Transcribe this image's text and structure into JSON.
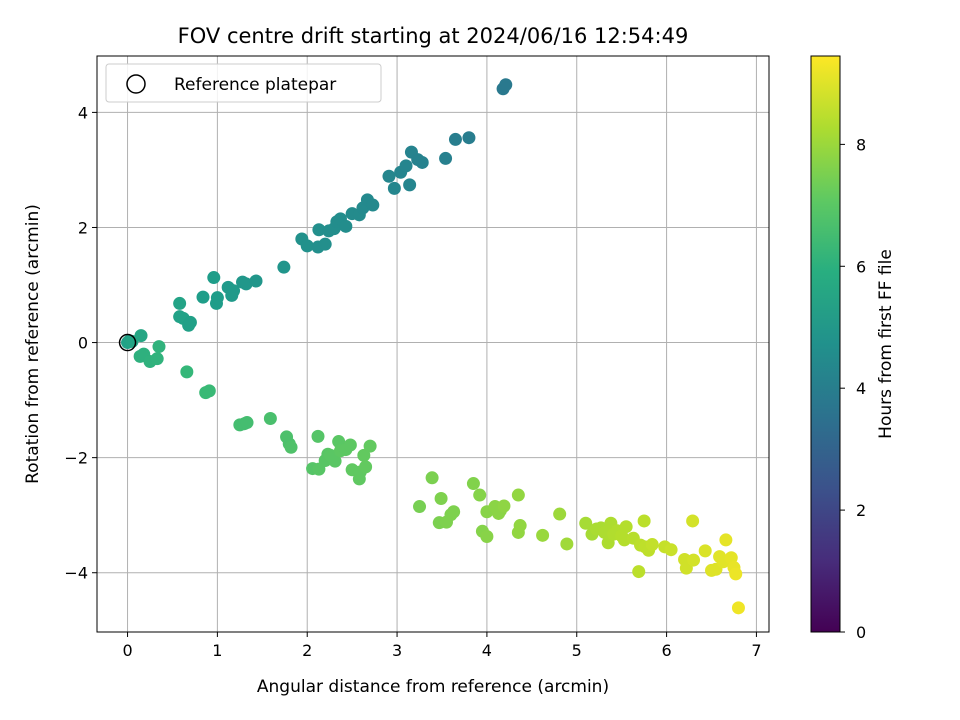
{
  "chart_data": {
    "type": "scatter",
    "title": "FOV centre drift starting at 2024/06/16 12:54:49",
    "xlabel": "Angular distance from reference (arcmin)",
    "ylabel": "Rotation from reference (arcmin)",
    "xlim": [
      -0.34,
      7.14
    ],
    "ylim": [
      -5.03,
      4.98
    ],
    "x_ticks": [
      0,
      1,
      2,
      3,
      4,
      5,
      6,
      7
    ],
    "x_tick_labels": [
      "0",
      "1",
      "2",
      "3",
      "4",
      "5",
      "6",
      "7"
    ],
    "y_ticks": [
      -4,
      -2,
      0,
      2,
      4
    ],
    "y_tick_labels": [
      "−4",
      "−2",
      "0",
      "2",
      "4"
    ],
    "grid": true,
    "legend": {
      "position": "top-left",
      "entries": [
        {
          "label": "Reference platepar",
          "marker": "hollow-circle"
        }
      ]
    },
    "colorbar": {
      "label": "Hours from first FF file",
      "colormap": "viridis",
      "min": 0,
      "max": 9.45,
      "ticks": [
        0,
        2,
        4,
        6,
        8
      ],
      "tick_labels": [
        "0",
        "2",
        "4",
        "6",
        "8"
      ]
    },
    "reference_point": {
      "x": 0,
      "y": 0
    },
    "series": [
      {
        "color_value_label": "Hours from first FF file",
        "points": [
          [
            0.0,
            0.0,
            5.4
          ],
          [
            0.02,
            0.03,
            5.4
          ],
          [
            0.05,
            0.02,
            5.5
          ],
          [
            0.15,
            0.12,
            5.6
          ],
          [
            0.14,
            -0.24,
            6.0
          ],
          [
            0.18,
            -0.2,
            6.0
          ],
          [
            0.25,
            -0.33,
            6.05
          ],
          [
            0.33,
            -0.28,
            6.1
          ],
          [
            0.35,
            -0.07,
            6.1
          ],
          [
            0.58,
            0.68,
            5.45
          ],
          [
            0.58,
            0.45,
            5.4
          ],
          [
            0.62,
            0.42,
            5.4
          ],
          [
            0.68,
            0.3,
            5.35
          ],
          [
            0.7,
            0.35,
            5.35
          ],
          [
            0.84,
            0.79,
            5.25
          ],
          [
            0.96,
            1.13,
            5.2
          ],
          [
            0.99,
            0.68,
            5.2
          ],
          [
            1.0,
            0.78,
            5.2
          ],
          [
            1.12,
            0.96,
            5.1
          ],
          [
            1.16,
            0.82,
            5.1
          ],
          [
            1.18,
            0.9,
            5.1
          ],
          [
            1.28,
            1.05,
            5.0
          ],
          [
            1.32,
            1.02,
            5.0
          ],
          [
            1.43,
            1.07,
            4.95
          ],
          [
            1.74,
            1.31,
            4.9
          ],
          [
            1.94,
            1.8,
            4.75
          ],
          [
            2.0,
            1.68,
            4.75
          ],
          [
            2.12,
            1.66,
            4.7
          ],
          [
            2.13,
            1.96,
            4.7
          ],
          [
            2.2,
            1.71,
            4.7
          ],
          [
            2.24,
            1.94,
            4.65
          ],
          [
            2.3,
            1.98,
            4.65
          ],
          [
            2.33,
            2.1,
            4.6
          ],
          [
            2.37,
            2.15,
            4.6
          ],
          [
            2.43,
            2.02,
            4.6
          ],
          [
            2.5,
            2.24,
            4.55
          ],
          [
            2.58,
            2.22,
            4.55
          ],
          [
            2.62,
            2.34,
            4.5
          ],
          [
            2.67,
            2.48,
            4.45
          ],
          [
            2.73,
            2.39,
            4.45
          ],
          [
            2.91,
            2.89,
            4.35
          ],
          [
            2.97,
            2.68,
            4.35
          ],
          [
            3.04,
            2.96,
            4.3
          ],
          [
            3.1,
            3.07,
            4.3
          ],
          [
            3.14,
            2.74,
            4.3
          ],
          [
            3.16,
            3.31,
            4.25
          ],
          [
            3.23,
            3.18,
            4.2
          ],
          [
            3.28,
            3.13,
            4.2
          ],
          [
            3.54,
            3.2,
            4.1
          ],
          [
            3.65,
            3.53,
            4.05
          ],
          [
            3.8,
            3.56,
            4.0
          ],
          [
            4.18,
            4.41,
            3.85
          ],
          [
            4.21,
            4.48,
            3.85
          ],
          [
            0.66,
            -0.51,
            6.3
          ],
          [
            0.87,
            -0.87,
            6.4
          ],
          [
            0.91,
            -0.84,
            6.4
          ],
          [
            1.25,
            -1.43,
            6.6
          ],
          [
            1.3,
            -1.41,
            6.6
          ],
          [
            1.33,
            -1.39,
            6.6
          ],
          [
            1.59,
            -1.32,
            6.7
          ],
          [
            1.77,
            -1.64,
            6.75
          ],
          [
            1.8,
            -1.76,
            6.75
          ],
          [
            1.82,
            -1.82,
            6.8
          ],
          [
            2.06,
            -2.19,
            6.9
          ],
          [
            2.12,
            -1.63,
            6.9
          ],
          [
            2.13,
            -2.2,
            6.95
          ],
          [
            2.2,
            -2.05,
            6.95
          ],
          [
            2.23,
            -1.94,
            6.95
          ],
          [
            2.26,
            -1.96,
            7.0
          ],
          [
            2.31,
            -2.06,
            7.0
          ],
          [
            2.35,
            -1.72,
            7.0
          ],
          [
            2.37,
            -1.88,
            7.05
          ],
          [
            2.43,
            -1.86,
            7.05
          ],
          [
            2.48,
            -1.78,
            7.05
          ],
          [
            2.5,
            -2.21,
            7.1
          ],
          [
            2.58,
            -2.37,
            7.1
          ],
          [
            2.59,
            -2.25,
            7.1
          ],
          [
            2.63,
            -1.96,
            7.15
          ],
          [
            2.65,
            -2.16,
            7.15
          ],
          [
            2.7,
            -1.8,
            7.15
          ],
          [
            3.25,
            -2.85,
            7.5
          ],
          [
            3.39,
            -2.35,
            7.55
          ],
          [
            3.47,
            -3.13,
            7.55
          ],
          [
            3.49,
            -2.71,
            7.6
          ],
          [
            3.55,
            -3.12,
            7.6
          ],
          [
            3.6,
            -2.99,
            7.6
          ],
          [
            3.63,
            -2.94,
            7.6
          ],
          [
            3.85,
            -2.45,
            7.65
          ],
          [
            3.92,
            -2.65,
            7.7
          ],
          [
            3.95,
            -3.28,
            7.7
          ],
          [
            4.0,
            -2.94,
            7.75
          ],
          [
            4.0,
            -3.37,
            7.75
          ],
          [
            4.09,
            -2.85,
            7.8
          ],
          [
            4.13,
            -2.97,
            7.8
          ],
          [
            4.15,
            -2.92,
            7.8
          ],
          [
            4.19,
            -2.84,
            7.85
          ],
          [
            4.35,
            -2.65,
            7.9
          ],
          [
            4.35,
            -3.3,
            7.9
          ],
          [
            4.37,
            -3.18,
            7.9
          ],
          [
            4.62,
            -3.35,
            8.0
          ],
          [
            4.81,
            -2.98,
            8.05
          ],
          [
            4.89,
            -3.5,
            8.1
          ],
          [
            5.1,
            -3.14,
            8.2
          ],
          [
            5.17,
            -3.33,
            8.2
          ],
          [
            5.22,
            -3.24,
            8.25
          ],
          [
            5.27,
            -3.22,
            8.25
          ],
          [
            5.31,
            -3.3,
            8.3
          ],
          [
            5.35,
            -3.48,
            8.3
          ],
          [
            5.38,
            -3.14,
            8.3
          ],
          [
            5.41,
            -3.33,
            8.35
          ],
          [
            5.45,
            -3.27,
            8.35
          ],
          [
            5.5,
            -3.36,
            8.4
          ],
          [
            5.53,
            -3.43,
            8.4
          ],
          [
            5.55,
            -3.2,
            8.4
          ],
          [
            5.63,
            -3.4,
            8.45
          ],
          [
            5.69,
            -3.98,
            8.5
          ],
          [
            5.71,
            -3.52,
            8.5
          ],
          [
            5.75,
            -3.1,
            8.5
          ],
          [
            5.76,
            -3.55,
            8.55
          ],
          [
            5.8,
            -3.61,
            8.55
          ],
          [
            5.84,
            -3.51,
            8.6
          ],
          [
            5.98,
            -3.55,
            8.65
          ],
          [
            6.05,
            -3.6,
            8.7
          ],
          [
            6.2,
            -3.77,
            8.8
          ],
          [
            6.22,
            -3.92,
            8.8
          ],
          [
            6.29,
            -3.1,
            8.85
          ],
          [
            6.3,
            -3.78,
            8.85
          ],
          [
            6.43,
            -3.62,
            8.95
          ],
          [
            6.5,
            -3.96,
            9.0
          ],
          [
            6.55,
            -3.94,
            9.0
          ],
          [
            6.59,
            -3.72,
            9.05
          ],
          [
            6.63,
            -3.81,
            9.05
          ],
          [
            6.66,
            -3.43,
            9.1
          ],
          [
            6.72,
            -3.74,
            9.1
          ],
          [
            6.75,
            -3.91,
            9.15
          ],
          [
            6.77,
            -4.02,
            9.2
          ],
          [
            6.8,
            -4.61,
            9.25
          ]
        ]
      }
    ]
  }
}
